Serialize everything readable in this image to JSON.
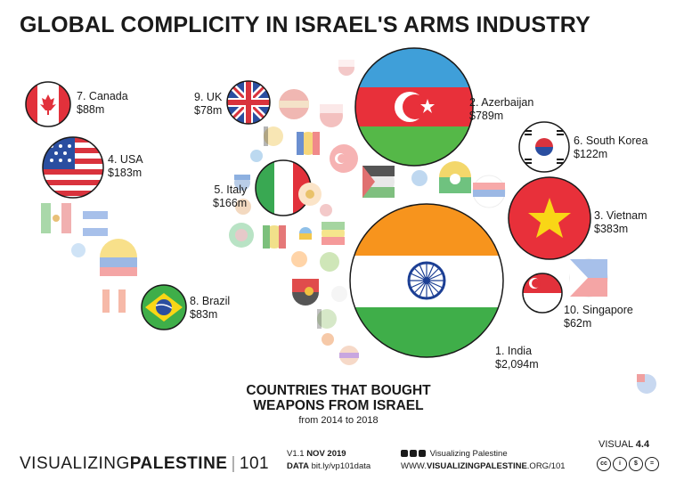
{
  "title": "GLOBAL COMPLICITY IN ISRAEL'S ARMS INDUSTRY",
  "subtitle": {
    "line1": "COUNTRIES THAT BOUGHT",
    "line2": "WEAPONS FROM ISRAEL",
    "line3": "from 2014 to 2018"
  },
  "chart_data": {
    "type": "bubble",
    "title": "GLOBAL COMPLICITY IN ISRAEL'S ARMS INDUSTRY",
    "unit": "USD millions",
    "labeled": [
      {
        "rank": "1.",
        "country": "India",
        "value_label": "$2,094m",
        "value": 2094
      },
      {
        "rank": "2.",
        "country": "Azerbaijan",
        "value_label": "$789m",
        "value": 789
      },
      {
        "rank": "3.",
        "country": "Vietnam",
        "value_label": "$383m",
        "value": 383
      },
      {
        "rank": "4.",
        "country": "USA",
        "value_label": "$183m",
        "value": 183
      },
      {
        "rank": "5.",
        "country": "Italy",
        "value_label": "$166m",
        "value": 166
      },
      {
        "rank": "6.",
        "country": "South Korea",
        "value_label": "$122m",
        "value": 122
      },
      {
        "rank": "7.",
        "country": "Canada",
        "value_label": "$88m",
        "value": 88
      },
      {
        "rank": "8.",
        "country": "Brazil",
        "value_label": "$83m",
        "value": 83
      },
      {
        "rank": "9.",
        "country": "UK",
        "value_label": "$78m",
        "value": 78
      },
      {
        "rank": "10.",
        "country": "Singapore",
        "value_label": "$62m",
        "value": 62
      }
    ],
    "unlabeled_bubble_count": 33
  },
  "colors": {
    "india_saffron": "#f7941d",
    "india_green": "#3fae49",
    "chakra": "#1c3f94",
    "azer_blue": "#3f9fd9",
    "azer_red": "#e8303a",
    "azer_green": "#55b848",
    "vn_red": "#e8303a",
    "vn_star": "#f9d616",
    "us_red": "#d9333d",
    "us_blue": "#2a4ea0",
    "it_green": "#39a852",
    "it_red": "#e2313b"
  },
  "footer": {
    "brand_light": "VISUALIZING",
    "brand_bold": "PALESTINE",
    "brand_num": "101",
    "version_prefix": "V1.1",
    "version_date": "NOV 2019",
    "data_label": "DATA",
    "data_link": "bit.ly/vp101data",
    "social": "Visualizing Palestine",
    "site_prefix": "WWW.",
    "site_bold": "VISUALIZINGPALESTINE",
    "site_suffix": ".ORG/101",
    "visual_label": "VISUAL",
    "visual_num": "4.4",
    "cc_icons": [
      "cc",
      "by",
      "nc",
      "nd"
    ]
  }
}
